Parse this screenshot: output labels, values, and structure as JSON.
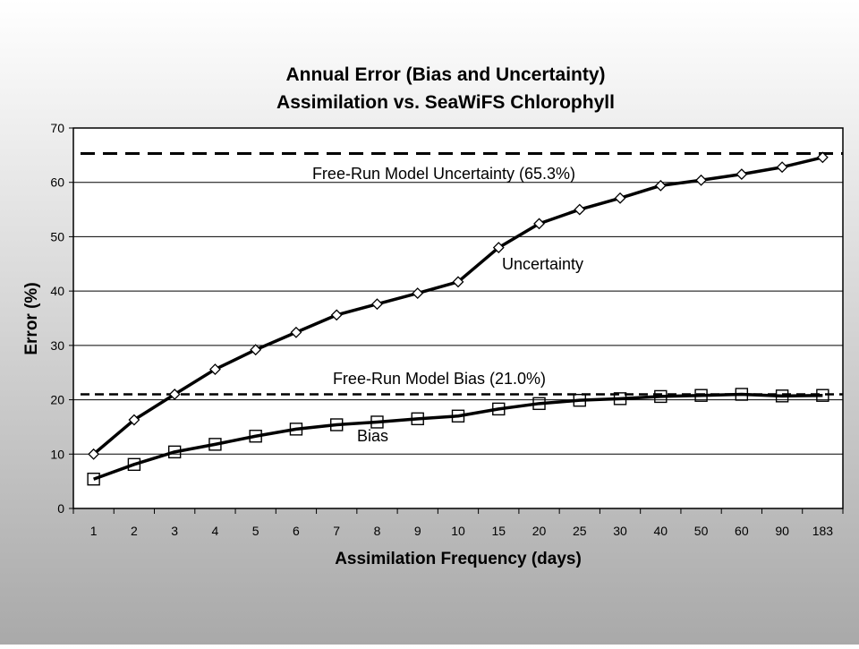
{
  "chart_data": {
    "type": "line",
    "title": [
      "Annual Error (Bias and Uncertainty)",
      "Assimilation vs. SeaWiFS Chlorophyll"
    ],
    "xlabel": "Assimilation Frequency (days)",
    "ylabel": "Error (%)",
    "categories": [
      "1",
      "2",
      "3",
      "4",
      "5",
      "6",
      "7",
      "8",
      "9",
      "10",
      "15",
      "20",
      "25",
      "30",
      "40",
      "50",
      "60",
      "90",
      "183"
    ],
    "ylim": [
      0,
      70
    ],
    "yticks": [
      "0",
      "10",
      "20",
      "30",
      "40",
      "50",
      "60",
      "70"
    ],
    "grid": true,
    "series": [
      {
        "name": "Uncertainty",
        "marker": "diamond",
        "color": "#000000",
        "values": [
          10,
          16.3,
          21,
          25.6,
          29.2,
          32.4,
          35.6,
          37.6,
          39.6,
          41.7,
          48,
          52.4,
          55,
          57.1,
          59.4,
          60.4,
          61.5,
          62.8,
          64.6
        ]
      },
      {
        "name": "Bias",
        "marker": "square",
        "color": "#000000",
        "values": [
          5.4,
          8.1,
          10.4,
          11.8,
          13.3,
          14.6,
          15.4,
          15.9,
          16.5,
          17,
          18.3,
          19.3,
          19.9,
          20.2,
          20.6,
          20.8,
          21,
          20.7,
          20.8
        ]
      }
    ],
    "reference_lines": [
      {
        "label": "Free-Run Model Uncertainty (65.3%)",
        "value": 65.3,
        "style": "dashed"
      },
      {
        "label": "Free-Run Model Bias (21.0%)",
        "value": 21.0,
        "style": "dashed"
      }
    ],
    "annotations": [
      "Uncertainty",
      "Bias"
    ]
  }
}
